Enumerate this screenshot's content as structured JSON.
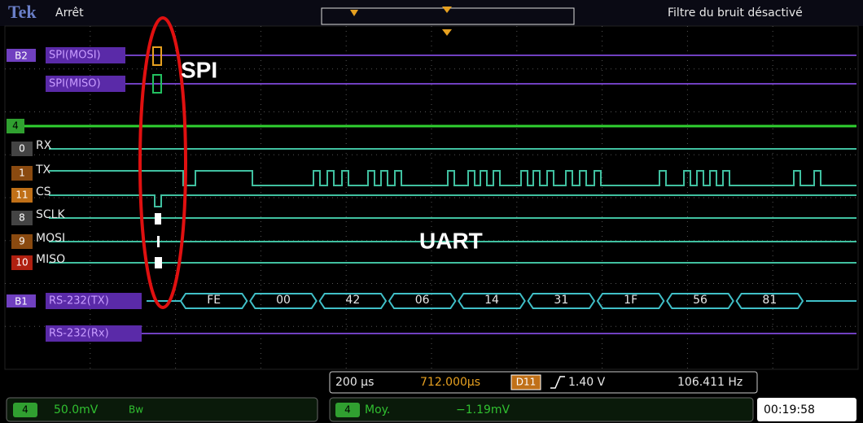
{
  "header": {
    "brand": "Tek",
    "status": "Arrêt",
    "noise_filter": "Filtre du bruit désactivé"
  },
  "channels": [
    {
      "badge": "B2",
      "label": "SPI(MOSI)"
    },
    {
      "label": "SPI(MISO)"
    },
    {
      "badge": "4"
    },
    {
      "badge": "0",
      "label": "RX"
    },
    {
      "badge": "1",
      "label": "TX"
    },
    {
      "badge": "11",
      "label": "CS"
    },
    {
      "badge": "8",
      "label": "SCLK"
    },
    {
      "badge": "9",
      "label": "MOSI"
    },
    {
      "badge": "10",
      "label": "MISO"
    },
    {
      "badge": "B1",
      "label": "RS-232(TX)"
    },
    {
      "label": "RS-232(Rx)"
    }
  ],
  "annotations": {
    "spi": "SPI",
    "uart": "UART"
  },
  "bus_values": [
    "FE",
    "00",
    "42",
    "06",
    "14",
    "31",
    "1F",
    "56",
    "81"
  ],
  "readout": {
    "time_scale": "200 µs",
    "position": "712.000µs",
    "trigger_source": "D11",
    "trigger_level": "1.40 V",
    "frequency": "106.411 Hz"
  },
  "footer": {
    "channel": "4",
    "scale": "50.0mV",
    "bandwidth": "Bw",
    "math_channel": "4",
    "math_mode": "Moy.",
    "math_value": "−1.19mV",
    "clock": "00:19:58"
  }
}
